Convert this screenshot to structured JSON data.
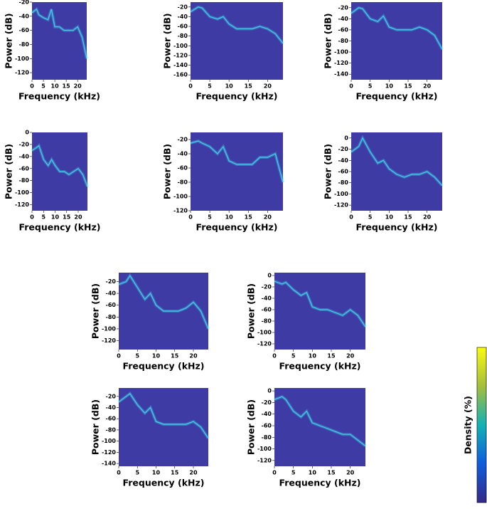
{
  "chart_data": [
    {
      "type": "line",
      "x_label": "Frequency (kHz)",
      "y_label": "Power (dB)",
      "xlim": [
        0,
        24
      ],
      "xticks": [
        0,
        5,
        10,
        15,
        20
      ],
      "ylim": [
        -130,
        -20
      ],
      "yticks": [
        -20,
        -40,
        -60,
        -80,
        -100,
        -120
      ],
      "background": "#3f3ba5",
      "color": "#3fd0e8",
      "x": [
        0,
        2,
        3,
        5,
        7,
        8.5,
        10,
        12,
        14,
        16,
        18,
        20,
        22,
        24
      ],
      "values": [
        -35,
        -30,
        -38,
        -42,
        -45,
        -30,
        -55,
        -55,
        -60,
        -60,
        -60,
        -55,
        -70,
        -100
      ]
    },
    {
      "type": "line",
      "x_label": "Frequency (kHz)",
      "y_label": "Power (dB)",
      "xlim": [
        0,
        24
      ],
      "xticks": [
        0,
        5,
        10,
        15,
        20
      ],
      "ylim": [
        -170,
        -10
      ],
      "yticks": [
        -20,
        -40,
        -60,
        -80,
        -100,
        -120,
        -140,
        -160
      ],
      "background": "#3f3ba5",
      "color": "#3fd0e8",
      "x": [
        0,
        2,
        3,
        5,
        7,
        8.5,
        10,
        12,
        14,
        16,
        18,
        20,
        22,
        24
      ],
      "values": [
        -30,
        -20,
        -22,
        -40,
        -45,
        -40,
        -55,
        -65,
        -65,
        -65,
        -60,
        -65,
        -75,
        -95
      ]
    },
    {
      "type": "line",
      "x_label": "Frequency (kHz)",
      "y_label": "Power (dB)",
      "xlim": [
        0,
        24
      ],
      "xticks": [
        0,
        5,
        10,
        15,
        20
      ],
      "ylim": [
        -150,
        -10
      ],
      "yticks": [
        -20,
        -40,
        -60,
        -80,
        -100,
        -120,
        -140
      ],
      "background": "#3f3ba5",
      "color": "#3fd0e8",
      "x": [
        0,
        2,
        3,
        5,
        7,
        8.5,
        10,
        12,
        14,
        16,
        18,
        20,
        22,
        24
      ],
      "values": [
        -30,
        -20,
        -22,
        -40,
        -45,
        -35,
        -55,
        -60,
        -60,
        -60,
        -55,
        -60,
        -70,
        -95
      ]
    },
    {
      "type": "line",
      "x_label": "Frequency (kHz)",
      "y_label": "Power (dB)",
      "xlim": [
        0,
        24
      ],
      "xticks": [
        0,
        5,
        10,
        15,
        20
      ],
      "ylim": [
        -130,
        0
      ],
      "yticks": [
        0,
        -20,
        -40,
        -60,
        -80,
        -100,
        -120
      ],
      "background": "#3f3ba5",
      "color": "#3fd0e8",
      "x": [
        0,
        2,
        3,
        5,
        7,
        8.5,
        10,
        12,
        14,
        16,
        18,
        20,
        22,
        24
      ],
      "values": [
        -30,
        -25,
        -22,
        -45,
        -55,
        -45,
        -55,
        -65,
        -65,
        -70,
        -65,
        -60,
        -70,
        -90
      ]
    },
    {
      "type": "line",
      "x_label": "Frequency (kHz)",
      "y_label": "Power (dB)",
      "xlim": [
        0,
        24
      ],
      "xticks": [
        0,
        5,
        10,
        15,
        20
      ],
      "ylim": [
        -120,
        -10
      ],
      "yticks": [
        -20,
        -40,
        -60,
        -80,
        -100,
        -120
      ],
      "background": "#3f3ba5",
      "color": "#3fd0e8",
      "x": [
        0,
        2,
        3,
        5,
        7,
        8.5,
        10,
        12,
        14,
        16,
        18,
        20,
        22,
        24
      ],
      "values": [
        -25,
        -22,
        -25,
        -30,
        -40,
        -30,
        -50,
        -55,
        -55,
        -55,
        -45,
        -45,
        -40,
        -80
      ]
    },
    {
      "type": "line",
      "x_label": "Frequency (kHz)",
      "y_label": "Power (dB)",
      "xlim": [
        0,
        24
      ],
      "xticks": [
        0,
        5,
        10,
        15,
        20
      ],
      "ylim": [
        -130,
        10
      ],
      "yticks": [
        0,
        -20,
        -40,
        -60,
        -80,
        -100,
        -120
      ],
      "background": "#3f3ba5",
      "color": "#3fd0e8",
      "x": [
        0,
        2,
        3,
        5,
        7,
        8.5,
        10,
        12,
        14,
        16,
        18,
        20,
        22,
        24
      ],
      "values": [
        -25,
        -15,
        0,
        -25,
        -45,
        -40,
        -55,
        -65,
        -70,
        -65,
        -65,
        -60,
        -70,
        -85
      ]
    },
    {
      "type": "line",
      "x_label": "Frequency (kHz)",
      "y_label": "Power (dB)",
      "xlim": [
        0,
        24
      ],
      "xticks": [
        0,
        5,
        10,
        15,
        20
      ],
      "ylim": [
        -135,
        -5
      ],
      "yticks": [
        -20,
        -40,
        -60,
        -80,
        -100,
        -120
      ],
      "background": "#3f3ba5",
      "color": "#3fd0e8",
      "x": [
        0,
        2,
        3,
        5,
        7,
        8.5,
        10,
        12,
        14,
        16,
        18,
        20,
        22,
        24
      ],
      "values": [
        -25,
        -20,
        -10,
        -30,
        -50,
        -40,
        -60,
        -70,
        -70,
        -70,
        -65,
        -55,
        -70,
        -100
      ]
    },
    {
      "type": "line",
      "x_label": "Frequency (kHz)",
      "y_label": "Power (dB)",
      "xlim": [
        0,
        24
      ],
      "xticks": [
        0,
        5,
        10,
        15,
        20
      ],
      "ylim": [
        -130,
        5
      ],
      "yticks": [
        0,
        -20,
        -40,
        -60,
        -80,
        -100,
        -120
      ],
      "background": "#3f3ba5",
      "color": "#3fd0e8",
      "x": [
        0,
        2,
        3,
        5,
        7,
        8.5,
        10,
        12,
        14,
        16,
        18,
        20,
        22,
        24
      ],
      "values": [
        -10,
        -15,
        -12,
        -25,
        -35,
        -30,
        -55,
        -60,
        -60,
        -65,
        -70,
        -60,
        -70,
        -90
      ]
    },
    {
      "type": "line",
      "x_label": "Frequency (kHz)",
      "y_label": "Power (dB)",
      "xlim": [
        0,
        24
      ],
      "xticks": [
        0,
        5,
        10,
        15,
        20
      ],
      "ylim": [
        -145,
        -5
      ],
      "yticks": [
        -20,
        -40,
        -60,
        -80,
        -100,
        -120,
        -140
      ],
      "background": "#3f3ba5",
      "color": "#3fd0e8",
      "x": [
        0,
        2,
        3,
        5,
        7,
        8.5,
        10,
        12,
        14,
        16,
        18,
        20,
        22,
        24
      ],
      "values": [
        -30,
        -20,
        -15,
        -35,
        -50,
        -40,
        -65,
        -70,
        -70,
        -70,
        -70,
        -65,
        -75,
        -95
      ]
    },
    {
      "type": "line",
      "x_label": "Frequency (kHz)",
      "y_label": "Power (dB)",
      "xlim": [
        0,
        24
      ],
      "xticks": [
        0,
        5,
        10,
        15,
        20
      ],
      "ylim": [
        -130,
        5
      ],
      "yticks": [
        0,
        -20,
        -40,
        -60,
        -80,
        -100,
        -120
      ],
      "background": "#3f3ba5",
      "color": "#3fd0e8",
      "x": [
        0,
        2,
        3,
        5,
        7,
        8.5,
        10,
        12,
        14,
        16,
        18,
        20,
        22,
        24
      ],
      "values": [
        -15,
        -10,
        -15,
        -35,
        -45,
        -35,
        -55,
        -60,
        -65,
        -70,
        -75,
        -75,
        -85,
        -95
      ]
    }
  ],
  "colorbar": {
    "label": "Density (%)"
  }
}
